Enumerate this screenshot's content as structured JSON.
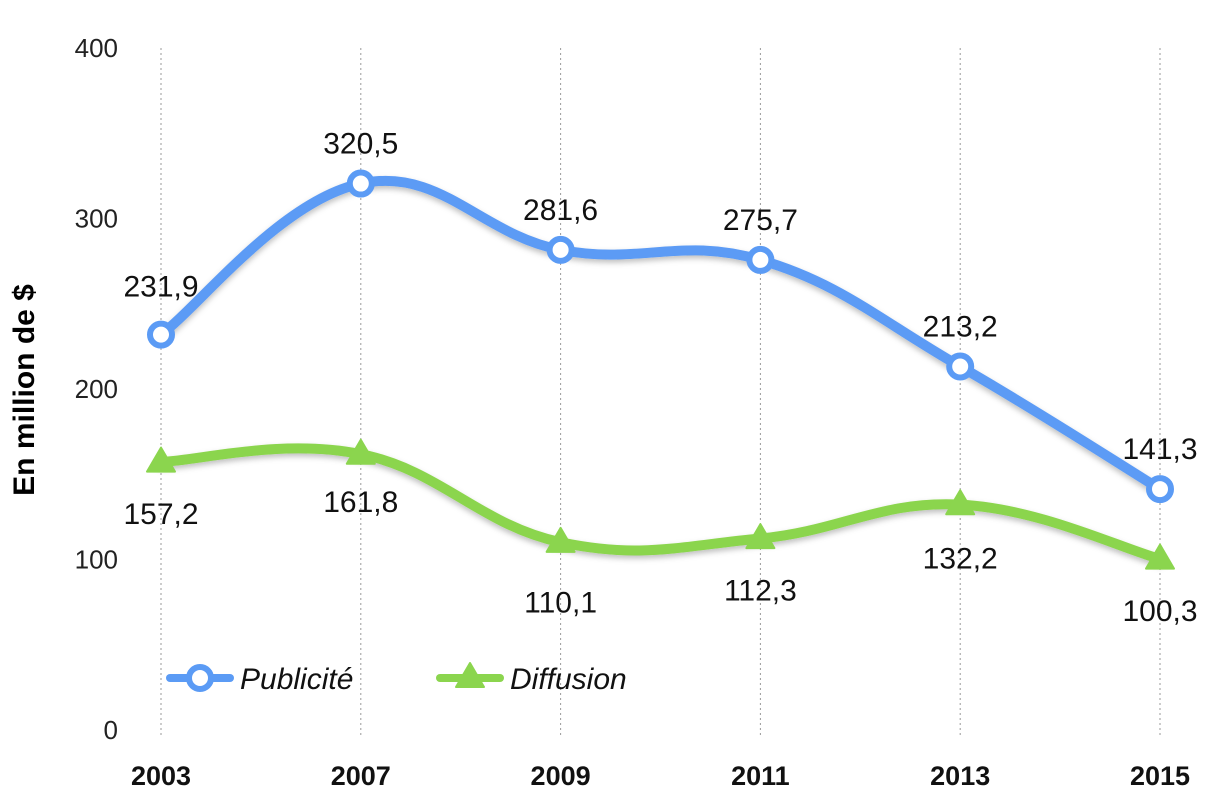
{
  "chart_data": {
    "type": "line",
    "ylabel": "En million de $",
    "ylim": [
      0,
      400
    ],
    "yticks": [
      "0",
      "100",
      "200",
      "300",
      "400"
    ],
    "categories": [
      "2003",
      "2007",
      "2009",
      "2011",
      "2013",
      "2015"
    ],
    "grid": "vertical dotted lines",
    "legend_position": "bottom-left inside plot",
    "series": [
      {
        "name": "Publicité",
        "marker": "circle",
        "color": "#5B9BF5",
        "values": [
          231.9,
          320.5,
          281.6,
          275.7,
          213.2,
          141.3
        ],
        "labels": [
          "231,9",
          "320,5",
          "281,6",
          "275,7",
          "213,2",
          "141,3"
        ]
      },
      {
        "name": "Diffusion",
        "marker": "triangle",
        "color": "#8BD54E",
        "values": [
          157.2,
          161.8,
          110.1,
          112.3,
          132.2,
          100.3
        ],
        "labels": [
          "157,2",
          "161,8",
          "110,1",
          "112,3",
          "132,2",
          "100,3"
        ]
      }
    ]
  }
}
